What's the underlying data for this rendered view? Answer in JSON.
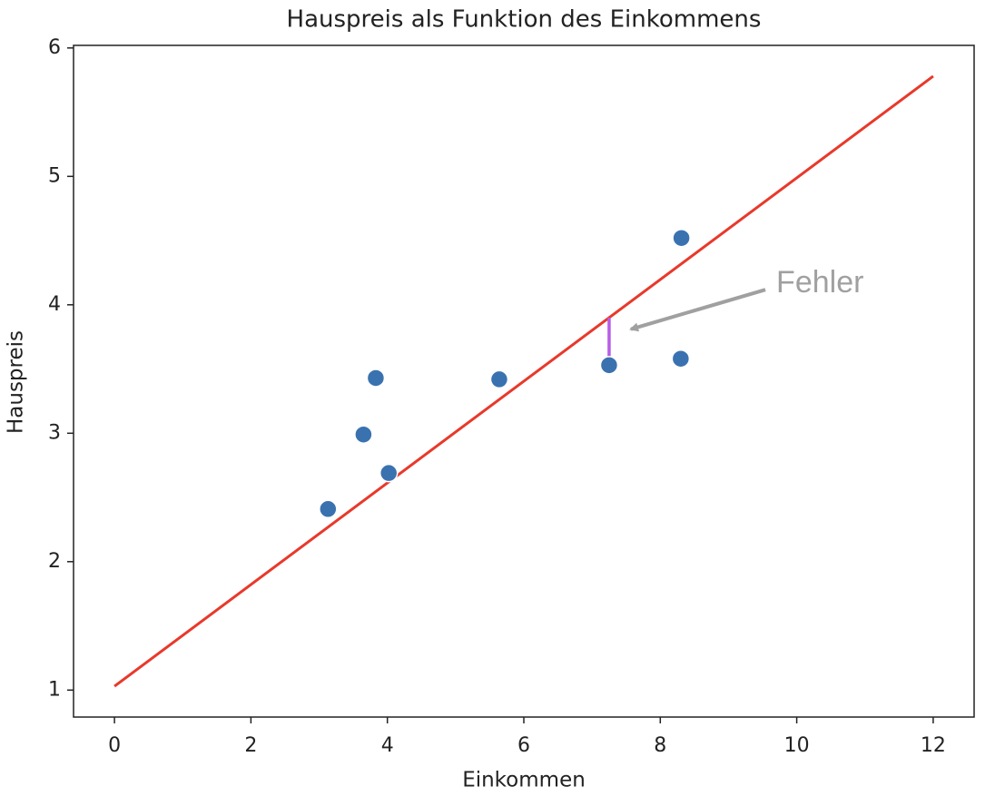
{
  "chart_data": {
    "type": "scatter",
    "title": "Hauspreis als Funktion des Einkommens",
    "x_label": "Einkommen",
    "y_label": "Hauspreis",
    "xlim": [
      -0.6,
      12.6
    ],
    "ylim": [
      0.79,
      6.02
    ],
    "xticks": [
      0,
      2,
      4,
      6,
      8,
      10,
      12
    ],
    "yticks": [
      1,
      2,
      3,
      4,
      5,
      6
    ],
    "points": {
      "x": [
        3.13,
        3.65,
        3.83,
        4.02,
        5.64,
        7.25,
        8.31,
        8.3
      ],
      "y": [
        2.41,
        2.99,
        3.43,
        2.69,
        3.42,
        3.53,
        4.52,
        3.58
      ],
      "color": "#3a72b0"
    },
    "fit_line": {
      "x": [
        0,
        12
      ],
      "y": [
        1.03,
        5.78
      ],
      "color": "#e8392b"
    },
    "error": {
      "x": 7.25,
      "y": [
        3.53,
        3.9
      ],
      "color": "#b65ce6"
    },
    "annotation": {
      "text": "Fehler",
      "x": 9.7,
      "y": 4.16,
      "arrow_x": 7.57,
      "arrow_y": 3.81,
      "color": "#a0a0a0"
    }
  }
}
